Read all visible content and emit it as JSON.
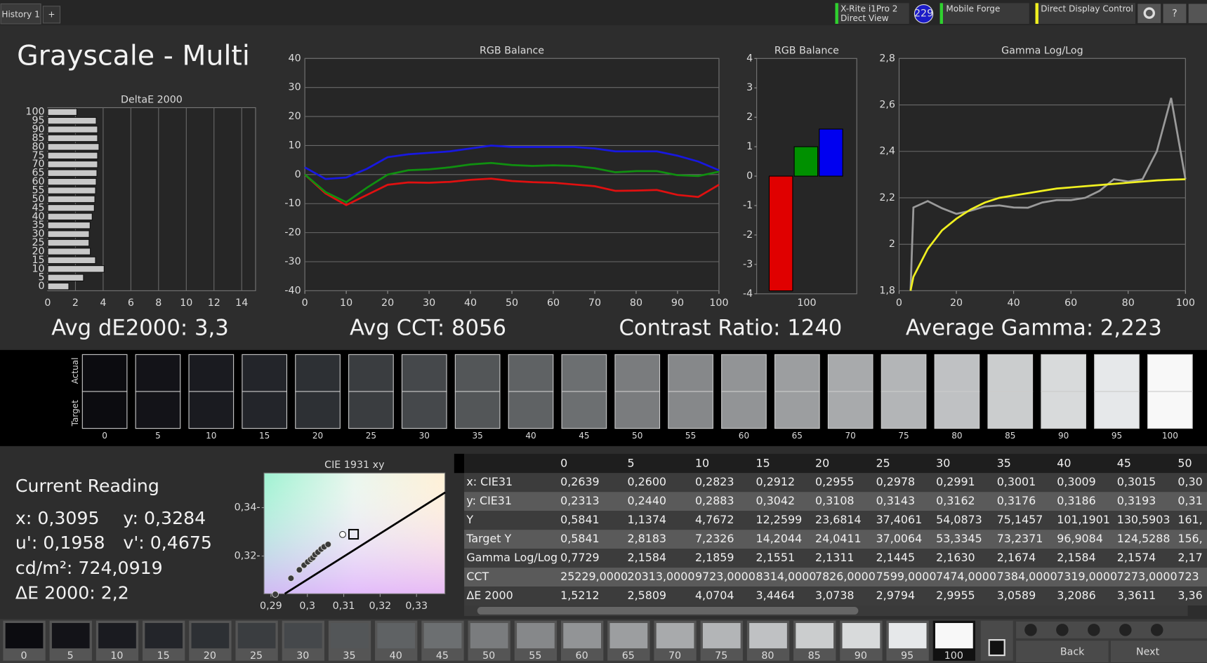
{
  "toolbar": {
    "tab": "History 1",
    "add_tab": "+",
    "meter": "X-Rite i1Pro 2",
    "meter_mode": "Direct View",
    "badge": "229",
    "profile": "Mobile Forge",
    "control": "Direct Display Control",
    "help": "?"
  },
  "title": "Grayscale - Multi",
  "chart_data": [
    {
      "type": "hbar",
      "title": "DeltaE 2000",
      "categories": [
        "0",
        "5",
        "10",
        "15",
        "20",
        "25",
        "30",
        "35",
        "40",
        "45",
        "50",
        "55",
        "60",
        "65",
        "70",
        "75",
        "80",
        "85",
        "90",
        "95",
        "100"
      ],
      "values": [
        1.5212,
        2.5809,
        4.0704,
        3.4464,
        3.0738,
        2.9794,
        2.9955,
        3.0589,
        3.2086,
        3.3611,
        3.4,
        3.45,
        3.5,
        3.55,
        3.6,
        3.6,
        3.7,
        3.6,
        3.6,
        3.5,
        2.1
      ],
      "color": "#c8c8c8",
      "xlim": [
        0,
        15
      ],
      "xticks": [
        0,
        2,
        4,
        6,
        8,
        10,
        12,
        14
      ],
      "grid": "x"
    },
    {
      "type": "line",
      "title": "RGB Balance",
      "x": [
        0,
        5,
        10,
        15,
        20,
        25,
        30,
        35,
        40,
        45,
        50,
        55,
        60,
        65,
        70,
        75,
        80,
        85,
        90,
        95,
        100
      ],
      "series": [
        {
          "color": "#e01010",
          "values": [
            0,
            -6.5,
            -10.5,
            -7,
            -3.5,
            -2.7,
            -2.8,
            -2.5,
            -1.8,
            -1.4,
            -2.2,
            -2.6,
            -2.8,
            -3.4,
            -4,
            -5.6,
            -5.5,
            -5.3,
            -7,
            -7.7,
            -3.5
          ]
        },
        {
          "color": "#109010",
          "values": [
            0,
            -6,
            -9.5,
            -4.5,
            0,
            1.5,
            1.8,
            2.5,
            3.5,
            4,
            3.3,
            3,
            3.2,
            3,
            2.2,
            0.8,
            1.2,
            1.2,
            -0.2,
            -0.5,
            1
          ]
        },
        {
          "color": "#1818e0",
          "values": [
            2.5,
            -1.5,
            -1,
            2,
            6,
            7,
            7.5,
            8,
            9,
            10,
            9.5,
            9.5,
            9.5,
            9.5,
            9,
            8,
            8,
            8,
            6.5,
            4.5,
            1.5
          ]
        }
      ],
      "xlim": [
        0,
        100
      ],
      "xticks": [
        0,
        10,
        20,
        30,
        40,
        50,
        60,
        70,
        80,
        90,
        100
      ],
      "ylim": [
        -40,
        40
      ],
      "yticks": [
        -40,
        -30,
        -20,
        -10,
        0,
        10,
        20,
        30,
        40
      ],
      "grid": "y"
    },
    {
      "type": "bar",
      "title": "RGB Balance",
      "categories": [
        "100"
      ],
      "series": [
        {
          "color": "#e00000",
          "values": [
            -3.9
          ]
        },
        {
          "color": "#009000",
          "values": [
            1
          ]
        },
        {
          "color": "#0000f0",
          "values": [
            1.6
          ]
        }
      ],
      "ylim": [
        -4,
        4
      ],
      "yticks": [
        -4,
        -3,
        -2,
        -1,
        0,
        1,
        2,
        3,
        4
      ],
      "grid": "none"
    },
    {
      "type": "line",
      "title": "Gamma Log/Log",
      "x": [
        4,
        5,
        10,
        15,
        20,
        25,
        30,
        35,
        40,
        45,
        50,
        55,
        60,
        65,
        70,
        75,
        80,
        85,
        90,
        95,
        100
      ],
      "series": [
        {
          "color": "#9a9a9a",
          "values": [
            1.8,
            2.1584,
            2.1859,
            2.1551,
            2.1311,
            2.1445,
            2.163,
            2.1674,
            2.1584,
            2.1574,
            2.18,
            2.19,
            2.19,
            2.2,
            2.23,
            2.28,
            2.27,
            2.28,
            2.4,
            2.63,
            2.28
          ]
        },
        {
          "color": "#f0f020",
          "values": [
            1.8,
            1.86,
            1.98,
            2.06,
            2.11,
            2.15,
            2.18,
            2.2,
            2.21,
            2.22,
            2.23,
            2.24,
            2.245,
            2.25,
            2.255,
            2.26,
            2.265,
            2.27,
            2.275,
            2.278,
            2.28
          ]
        }
      ],
      "xlim": [
        0,
        100
      ],
      "xticks": [
        0,
        20,
        40,
        60,
        80,
        100
      ],
      "ylim": [
        1.8,
        2.8
      ],
      "yticks": [
        {
          "value": 1.8,
          "label": "1,8"
        },
        {
          "value": 2,
          "label": "2"
        },
        {
          "value": 2.2,
          "label": "2,2"
        },
        {
          "value": 2.4,
          "label": "2,4"
        },
        {
          "value": 2.6,
          "label": "2,6"
        },
        {
          "value": 2.8,
          "label": "2,8"
        }
      ],
      "grid": "y"
    },
    {
      "type": "scatter",
      "title": "CIE 1931 xy",
      "series": [
        {
          "style": "line",
          "color": "#000000",
          "x": [
            0.2938,
            0.3379
          ],
          "values": [
            0.3044,
            0.3463
          ]
        },
        {
          "style": "dot",
          "color": "#3a3a3a",
          "x": [
            0.2912,
            0.2955,
            0.2978,
            0.2991,
            0.3001,
            0.3009,
            0.3015,
            0.3021,
            0.3029,
            0.3038,
            0.3046,
            0.3057
          ],
          "values": [
            0.3042,
            0.3108,
            0.3143,
            0.3162,
            0.3176,
            0.3186,
            0.3193,
            0.3206,
            0.3216,
            0.3229,
            0.3238,
            0.3248
          ]
        },
        {
          "style": "ring",
          "color": "#ffffff",
          "x": [
            0.3097
          ],
          "values": [
            0.3289
          ]
        },
        {
          "style": "square",
          "color": "#000000",
          "x": [
            0.3127
          ],
          "values": [
            0.329
          ]
        }
      ],
      "xlim": [
        0.2881,
        0.3378
      ],
      "ylim": [
        0.3044,
        0.3543
      ],
      "xticks": [
        {
          "value": 0.29,
          "label": "0,29"
        },
        {
          "value": 0.3,
          "label": "0,3"
        },
        {
          "value": 0.31,
          "label": "0,31"
        },
        {
          "value": 0.32,
          "label": "0,32"
        },
        {
          "value": 0.33,
          "label": "0,33"
        }
      ],
      "yticks": [
        {
          "value": 0.32,
          "label": "0,32-"
        },
        {
          "value": 0.34,
          "label": "0,34-"
        }
      ],
      "grid": "none"
    }
  ],
  "stats": {
    "avg_de": "Avg dE2000: 3,3",
    "avg_cct": "Avg CCT: 8056",
    "contrast": "Contrast Ratio: 1240",
    "avg_gamma": "Average Gamma: 2,223"
  },
  "swatches": {
    "row_labels": [
      "Actual",
      "Target"
    ],
    "labels": [
      "0",
      "5",
      "10",
      "15",
      "20",
      "25",
      "30",
      "35",
      "40",
      "45",
      "50",
      "55",
      "60",
      "65",
      "70",
      "75",
      "80",
      "85",
      "90",
      "95",
      "100"
    ],
    "colors": [
      "#0c0c10",
      "#131318",
      "#1a1b20",
      "#23252a",
      "#2d3034",
      "#3a3d40",
      "#45484b",
      "#535658",
      "#5f6264",
      "#6c6f71",
      "#7a7c7e",
      "#86888a",
      "#929496",
      "#9c9ea0",
      "#a8aaac",
      "#b3b5b7",
      "#bfc1c3",
      "#cbcdce",
      "#d8dadb",
      "#e6e8ea",
      "#f8f8f8"
    ]
  },
  "reading": {
    "title": "Current Reading",
    "x": "x: 0,3095",
    "y": "y: 0,3284",
    "u": "u': 0,1958",
    "v": "v': 0,4675",
    "lum": "cd/m²: 724,0919",
    "de": "ΔE 2000: 2,2"
  },
  "table": {
    "columns": [
      "0",
      "5",
      "10",
      "15",
      "20",
      "25",
      "30",
      "35",
      "40",
      "45",
      "50"
    ],
    "rows": [
      {
        "label": "x: CIE31",
        "cells": [
          "0,2639",
          "0,2600",
          "0,2823",
          "0,2912",
          "0,2955",
          "0,2978",
          "0,2991",
          "0,3001",
          "0,3009",
          "0,3015",
          "0,30"
        ]
      },
      {
        "label": "y: CIE31",
        "cells": [
          "0,2313",
          "0,2440",
          "0,2883",
          "0,3042",
          "0,3108",
          "0,3143",
          "0,3162",
          "0,3176",
          "0,3186",
          "0,3193",
          "0,31"
        ]
      },
      {
        "label": "Y",
        "cells": [
          "0,5841",
          "1,1374",
          "4,7672",
          "12,2599",
          "23,6814",
          "37,4061",
          "54,0873",
          "75,1457",
          "101,1901",
          "130,5903",
          "161,"
        ]
      },
      {
        "label": "Target Y",
        "cells": [
          "0,5841",
          "2,8183",
          "7,2326",
          "14,2044",
          "24,0411",
          "37,0064",
          "53,3345",
          "73,2371",
          "96,9084",
          "124,5288",
          "156,"
        ]
      },
      {
        "label": "Gamma Log/Log",
        "cells": [
          "0,7729",
          "2,1584",
          "2,1859",
          "2,1551",
          "2,1311",
          "2,1445",
          "2,1630",
          "2,1674",
          "2,1584",
          "2,1574",
          "2,17"
        ]
      },
      {
        "label": "CCT",
        "cells": [
          "25229,0000",
          "20313,0000",
          "9723,0000",
          "8314,0000",
          "7826,0000",
          "7599,0000",
          "7474,0000",
          "7384,0000",
          "7319,0000",
          "7273,0000",
          "723"
        ]
      },
      {
        "label": "ΔE 2000",
        "cells": [
          "1,5212",
          "2,5809",
          "4,0704",
          "3,4464",
          "3,0738",
          "2,9794",
          "2,9955",
          "3,0589",
          "3,2086",
          "3,3611",
          "3,36"
        ]
      }
    ]
  },
  "nav": {
    "back": "Back",
    "next": "Next"
  }
}
